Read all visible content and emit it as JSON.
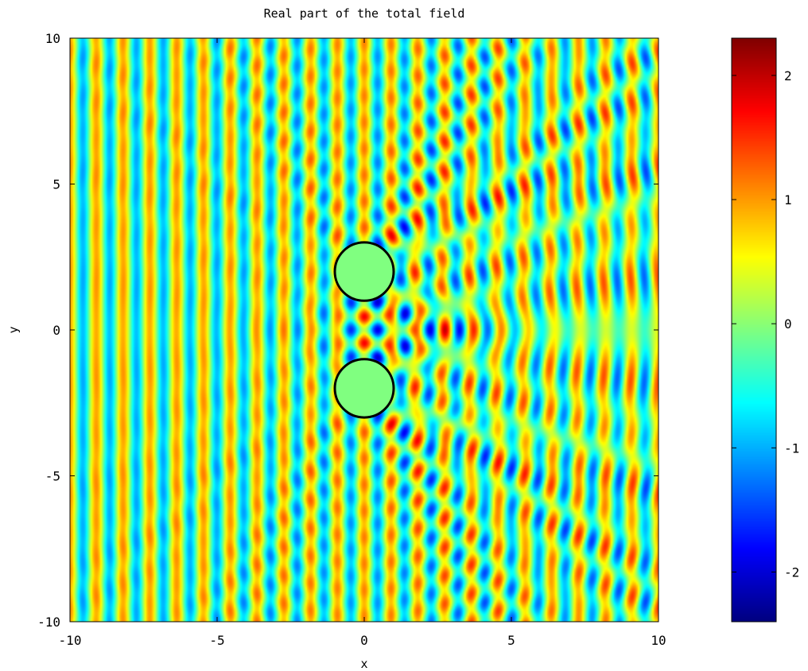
{
  "chart_data": {
    "type": "heatmap",
    "title": "Real part of the total field",
    "xlabel": "x",
    "ylabel": "y",
    "xlim": [
      -10,
      10
    ],
    "ylim": [
      -10,
      10
    ],
    "xticks": [
      -10,
      -5,
      0,
      5,
      10
    ],
    "yticks": [
      -10,
      -5,
      0,
      5,
      10
    ],
    "colorbar": {
      "colormap": "jet",
      "range": [
        -2.4,
        2.3
      ],
      "ticks": [
        -2,
        -1,
        0,
        1,
        2
      ]
    },
    "scatterers": [
      {
        "name": "",
        "cx": 0,
        "cy": 2,
        "r": 1
      },
      {
        "name": "",
        "cx": 0,
        "cy": -2,
        "r": 1
      }
    ],
    "incident_wave": {
      "direction": "+x",
      "wavenumber": 6.9
    },
    "grid": false
  }
}
